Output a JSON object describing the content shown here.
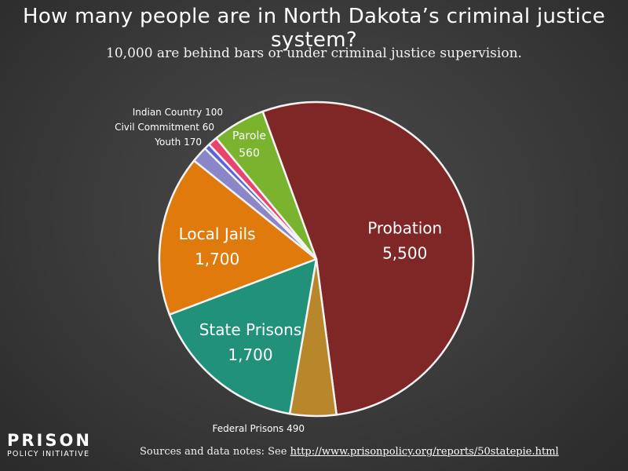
{
  "title": "How many people are in North Dakota’s criminal justice system?",
  "subtitle": "10,000 are behind bars or under criminal justice supervision.",
  "chart_data": {
    "type": "pie",
    "title": "How many people are in North Dakota’s criminal justice system?",
    "subtitle": "10,000 are behind bars or under criminal justice supervision.",
    "slices": [
      {
        "label": "Probation",
        "value": 5500,
        "value_label": "5,500",
        "color": "#7f2626"
      },
      {
        "label": "Federal Prisons",
        "value": 490,
        "value_label": "490",
        "color": "#b8862b"
      },
      {
        "label": "State Prisons",
        "value": 1700,
        "value_label": "1,700",
        "color": "#21917a"
      },
      {
        "label": "Local Jails",
        "value": 1700,
        "value_label": "1,700",
        "color": "#e07a0c"
      },
      {
        "label": "Youth",
        "value": 170,
        "value_label": "170",
        "color": "#8b86c8"
      },
      {
        "label": "Civil Commitment",
        "value": 60,
        "value_label": "60",
        "color": "#5a64d8"
      },
      {
        "label": "Indian Country",
        "value": 100,
        "value_label": "100",
        "color": "#e8456e"
      },
      {
        "label": "Parole",
        "value": 560,
        "value_label": "560",
        "color": "#7ab32e"
      }
    ]
  },
  "logo": {
    "word": "PRISON",
    "sub": "POLICY INITIATIVE"
  },
  "sources": {
    "prefix": "Sources and data notes: See ",
    "link": "http://www.prisonpolicy.org/reports/50statepie.html"
  }
}
